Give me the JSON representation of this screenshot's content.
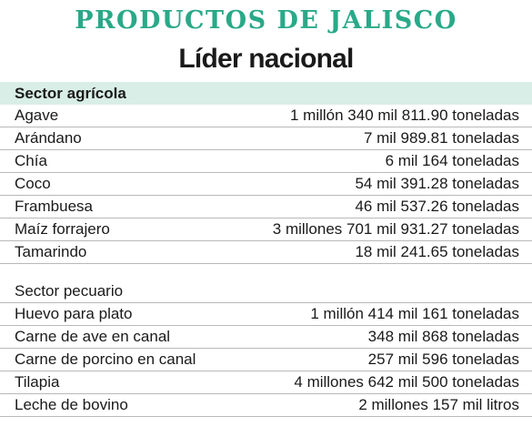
{
  "title": "PRODUCTOS DE JALISCO",
  "subtitle": "Líder nacional",
  "sections": [
    {
      "header": "Sector agrícola",
      "rows": [
        {
          "name": "Agave",
          "value": "1 millón 340 mil 811.90 toneladas"
        },
        {
          "name": "Arándano",
          "value": "7 mil 989.81 toneladas"
        },
        {
          "name": "Chía",
          "value": "6 mil 164 toneladas"
        },
        {
          "name": "Coco",
          "value": "54 mil 391.28 toneladas"
        },
        {
          "name": "Frambuesa",
          "value": "46 mil 537.26 toneladas"
        },
        {
          "name": "Maíz forrajero",
          "value": "3 millones 701 mil 931.27 toneladas"
        },
        {
          "name": "Tamarindo",
          "value": "18 mil 241.65 toneladas"
        }
      ]
    },
    {
      "header": "Sector pecuario",
      "rows": [
        {
          "name": "Huevo para plato",
          "value": "1 millón 414 mil 161 toneladas"
        },
        {
          "name": "Carne de ave en canal",
          "value": "348 mil 868 toneladas"
        },
        {
          "name": "Carne de porcino en canal",
          "value": "257 mil 596 toneladas"
        },
        {
          "name": "Tilapia",
          "value": "4 millones 642 mil 500 toneladas"
        },
        {
          "name": "Leche de bovino",
          "value": "2 millones 157 mil litros"
        }
      ]
    }
  ]
}
